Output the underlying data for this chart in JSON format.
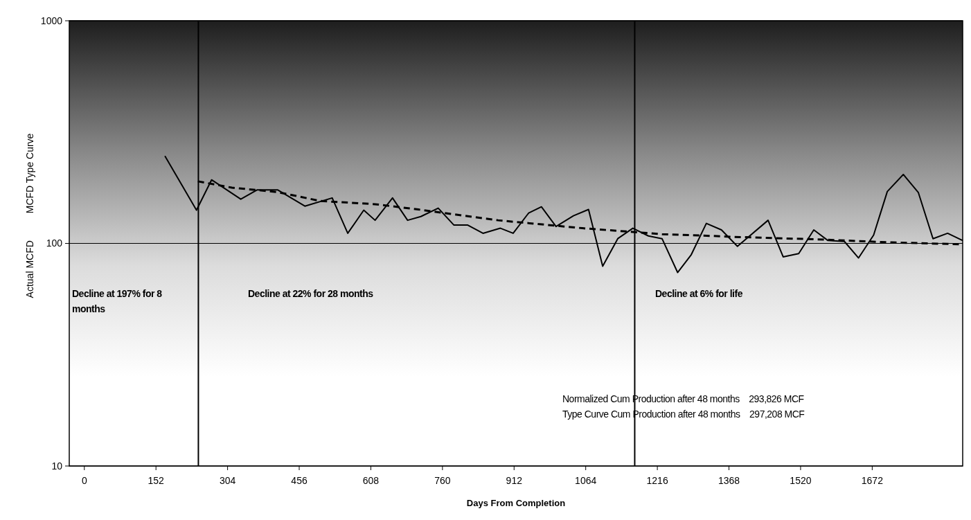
{
  "chart_data": {
    "type": "line",
    "xlabel": "Days From Completion",
    "ylabel": "Actual MCFD          MCFD Type Curve",
    "log": "y",
    "grid": "y",
    "xlim": [
      -32,
      1864
    ],
    "ylim": [
      10,
      1000
    ],
    "xticks": [
      0,
      152,
      304,
      456,
      608,
      760,
      912,
      1064,
      1216,
      1368,
      1520,
      1672
    ],
    "yticks": [
      10,
      100,
      1000
    ],
    "series": [
      {
        "color": "#000000",
        "line_style": "solid",
        "x": [
          171,
          238,
          270,
          332,
          367,
          410,
          468,
          526,
          559,
          593,
          617,
          654,
          686,
          714,
          751,
          784,
          813,
          846,
          883,
          910,
          943,
          970,
          1001,
          1038,
          1070,
          1100,
          1132,
          1164,
          1197,
          1226,
          1259,
          1288,
          1320,
          1352,
          1386,
          1451,
          1483,
          1516,
          1548,
          1578,
          1613,
          1643,
          1675,
          1704,
          1738,
          1770,
          1801,
          1832,
          1864
        ],
        "values": [
          247,
          141,
          193,
          158,
          174,
          174,
          147,
          160,
          111,
          141,
          127,
          160,
          127,
          132,
          144,
          121,
          121,
          111,
          117,
          111,
          137,
          146,
          119,
          133,
          142,
          79,
          105,
          117,
          108,
          105,
          74,
          89,
          123,
          115,
          97,
          127,
          87,
          90,
          115,
          103,
          102,
          86,
          109,
          171,
          204,
          169,
          105,
          111,
          103
        ]
      },
      {
        "color": "#000000",
        "line_style": "dashed",
        "x": [
          241,
          313,
          410,
          501,
          617,
          709,
          878,
          1057,
          1226,
          1332,
          1375,
          1570,
          1714,
          1864
        ],
        "values": [
          190,
          178,
          170,
          155,
          150,
          142,
          127,
          117,
          110,
          108,
          107,
          104,
          101,
          99
        ]
      }
    ],
    "ref_lines": [
      {
        "axis": "x",
        "value": 242,
        "color": "#000000"
      },
      {
        "axis": "x",
        "value": 1168,
        "color": "#000000"
      }
    ],
    "annotations": [
      "Decline at 197% for 8 months",
      "Decline at 22% for 28 months",
      "Decline at 6% for life",
      "Normalized Cum Production after 48 months    293,826 MCF",
      "Type Curve Cum Production after 48 months    297,208 MCF"
    ]
  }
}
